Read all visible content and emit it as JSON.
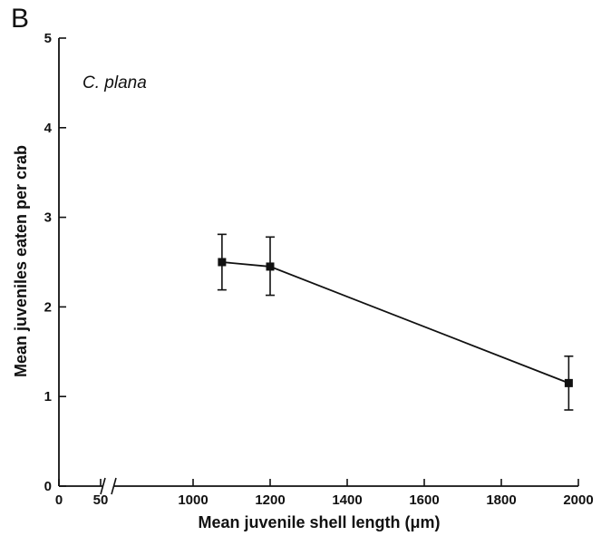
{
  "chart_data": {
    "type": "line",
    "panel_label": "B",
    "annotation": "C. plana",
    "xlabel": "Mean juvenile shell length (μm)",
    "ylabel": "Mean juveniles eaten per crab",
    "x_axis": {
      "broken": true,
      "segments": [
        {
          "range": [
            0,
            50
          ],
          "ticks": [
            0,
            50
          ]
        },
        {
          "range": [
            800,
            2000
          ],
          "ticks": [
            1000,
            1200,
            1400,
            1600,
            1800,
            2000
          ]
        }
      ]
    },
    "ylim": [
      0,
      5
    ],
    "yticks": [
      0,
      1,
      2,
      3,
      4,
      5
    ],
    "series": [
      {
        "x": [
          1075,
          1200,
          1975
        ],
        "y": [
          2.5,
          2.45,
          1.15
        ],
        "error_lower": [
          2.19,
          2.13,
          0.85
        ],
        "error_upper": [
          2.81,
          2.78,
          1.45
        ],
        "marker": "square",
        "color": "#111111"
      }
    ],
    "grid": false,
    "legend": "none"
  }
}
